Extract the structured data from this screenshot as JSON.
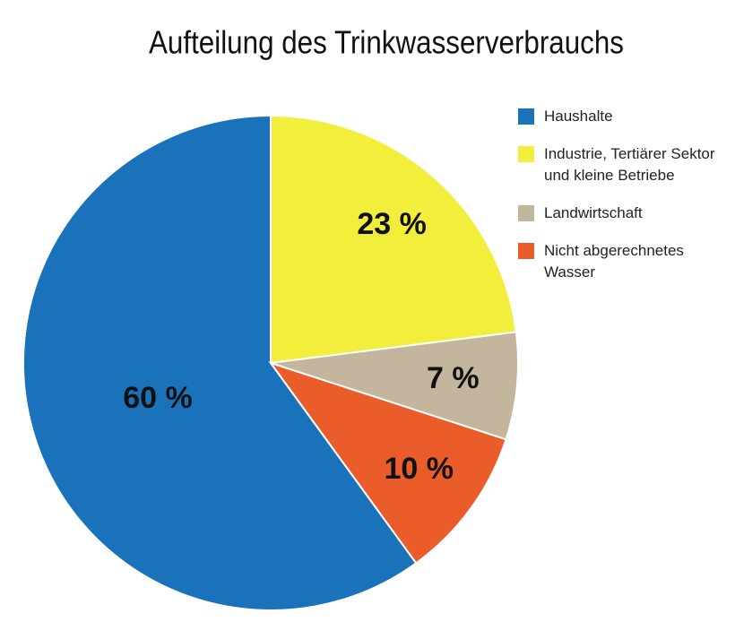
{
  "chart_data": {
    "type": "pie",
    "title": "Aufteilung des Trinkwasserverbrauchs",
    "categories": [
      "Haushalte",
      "Industrie, Tertiärer Sektor und kleine Betriebe",
      "Landwirtschaft",
      "Nicht abgerechnetes Wasser"
    ],
    "values": [
      60,
      23,
      7,
      10
    ],
    "value_labels": [
      "60 %",
      "23 %",
      "7 %",
      "10 %"
    ],
    "colors": [
      "#1a72bb",
      "#f2ee3c",
      "#c3b69c",
      "#ea5c2a"
    ],
    "legend": "right"
  }
}
